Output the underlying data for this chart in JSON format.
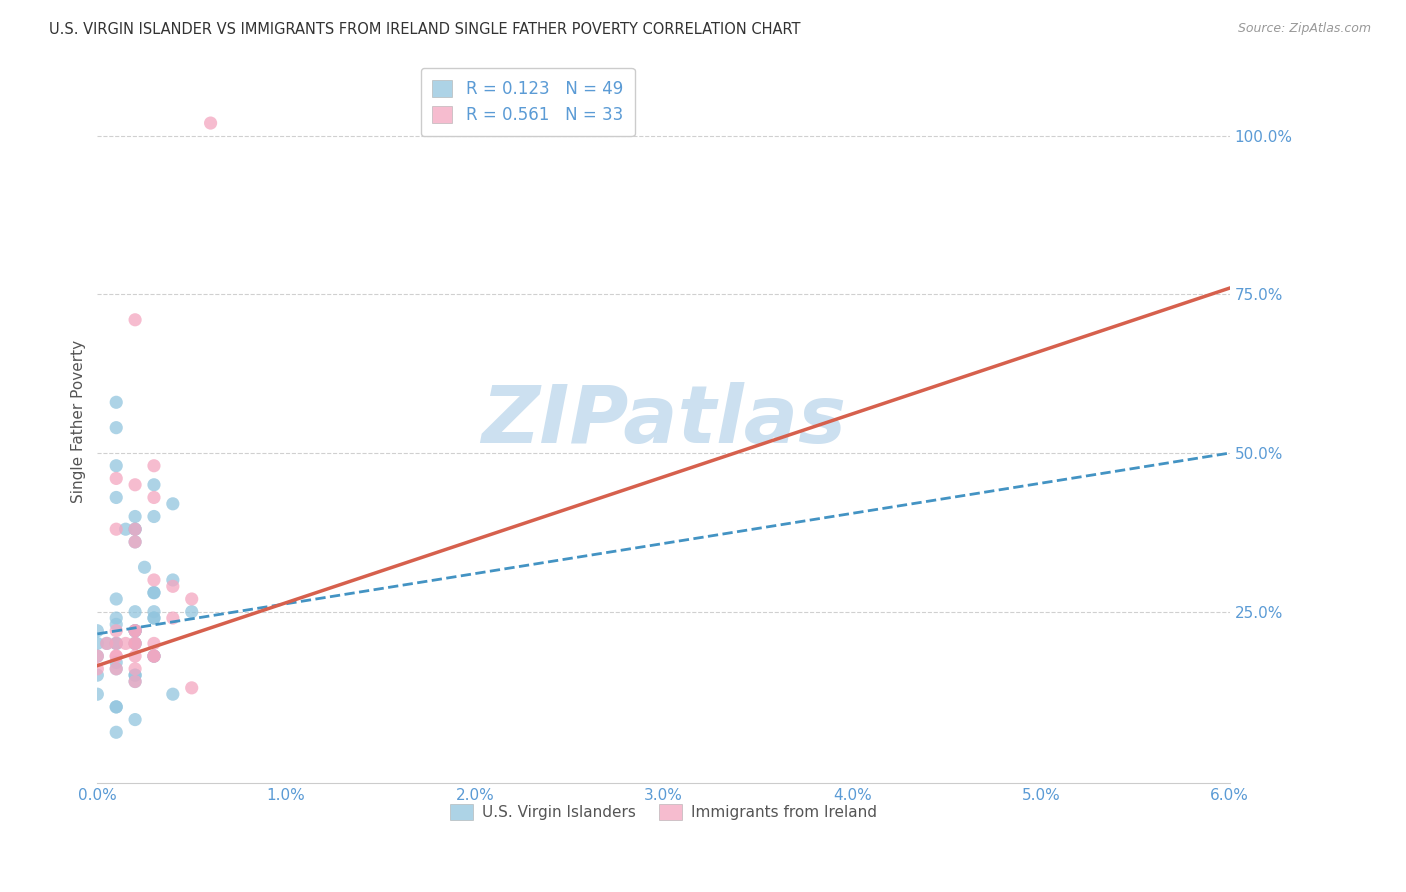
{
  "title": "U.S. VIRGIN ISLANDER VS IMMIGRANTS FROM IRELAND SINGLE FATHER POVERTY CORRELATION CHART",
  "source": "Source: ZipAtlas.com",
  "ylabel": "Single Father Poverty",
  "x_min": 0.0,
  "x_max": 0.06,
  "y_min": -0.02,
  "y_max": 1.12,
  "x_ticks": [
    0.0,
    0.01,
    0.02,
    0.03,
    0.04,
    0.05,
    0.06
  ],
  "x_tick_labels": [
    "0.0%",
    "1.0%",
    "2.0%",
    "3.0%",
    "4.0%",
    "5.0%",
    "6.0%"
  ],
  "y_ticks": [
    0.25,
    0.5,
    0.75,
    1.0
  ],
  "y_tick_labels": [
    "25.0%",
    "50.0%",
    "75.0%",
    "100.0%"
  ],
  "legend1_r": "0.123",
  "legend1_n": "49",
  "legend2_r": "0.561",
  "legend2_n": "33",
  "legend1_label": "U.S. Virgin Islanders",
  "legend2_label": "Immigrants from Ireland",
  "blue_color": "#92c5de",
  "pink_color": "#f4a6c0",
  "blue_line_color": "#4393c3",
  "pink_line_color": "#d6604d",
  "title_color": "#333333",
  "axis_label_color": "#555555",
  "tick_label_color": "#5b9bd5",
  "grid_color": "#d0d0d0",
  "watermark_color": "#cce0f0",
  "blue_scatter_x": [
    0.0,
    0.0005,
    0.001,
    0.001,
    0.001,
    0.001,
    0.001,
    0.001,
    0.0015,
    0.002,
    0.002,
    0.002,
    0.002,
    0.002,
    0.002,
    0.002,
    0.0025,
    0.003,
    0.003,
    0.003,
    0.003,
    0.003,
    0.004,
    0.004,
    0.005,
    0.0,
    0.0,
    0.0,
    0.0,
    0.001,
    0.001,
    0.002,
    0.002,
    0.003,
    0.003,
    0.001,
    0.002,
    0.003,
    0.004,
    0.001,
    0.002,
    0.001,
    0.003,
    0.002,
    0.001,
    0.002,
    0.001,
    0.001,
    0.002
  ],
  "blue_scatter_y": [
    0.22,
    0.2,
    0.58,
    0.54,
    0.48,
    0.43,
    0.24,
    0.2,
    0.38,
    0.4,
    0.38,
    0.36,
    0.22,
    0.2,
    0.15,
    0.14,
    0.32,
    0.45,
    0.4,
    0.28,
    0.24,
    0.18,
    0.42,
    0.3,
    0.25,
    0.2,
    0.18,
    0.15,
    0.12,
    0.27,
    0.17,
    0.22,
    0.25,
    0.25,
    0.18,
    0.1,
    0.22,
    0.28,
    0.12,
    0.23,
    0.2,
    0.16,
    0.24,
    0.38,
    0.2,
    0.08,
    0.1,
    0.06,
    0.15
  ],
  "pink_scatter_x": [
    0.0,
    0.0,
    0.001,
    0.001,
    0.001,
    0.001,
    0.0015,
    0.002,
    0.002,
    0.002,
    0.002,
    0.002,
    0.002,
    0.003,
    0.003,
    0.003,
    0.003,
    0.004,
    0.004,
    0.005,
    0.005,
    0.006,
    0.0005,
    0.001,
    0.002,
    0.002,
    0.003,
    0.002,
    0.001,
    0.003,
    0.001,
    0.002,
    0.002
  ],
  "pink_scatter_y": [
    0.18,
    0.16,
    0.22,
    0.46,
    0.38,
    0.18,
    0.2,
    0.45,
    0.2,
    0.22,
    0.38,
    0.18,
    0.14,
    0.48,
    0.43,
    0.2,
    0.18,
    0.29,
    0.24,
    0.27,
    0.13,
    1.02,
    0.2,
    0.16,
    0.22,
    0.36,
    0.3,
    0.16,
    0.18,
    0.18,
    0.2,
    0.2,
    0.71
  ],
  "blue_trendline_x": [
    0.0,
    0.06
  ],
  "blue_trendline_y": [
    0.215,
    0.5
  ],
  "pink_trendline_x": [
    0.0,
    0.06
  ],
  "pink_trendline_y": [
    0.165,
    0.76
  ],
  "figwidth": 14.06,
  "figheight": 8.92,
  "dpi": 100
}
